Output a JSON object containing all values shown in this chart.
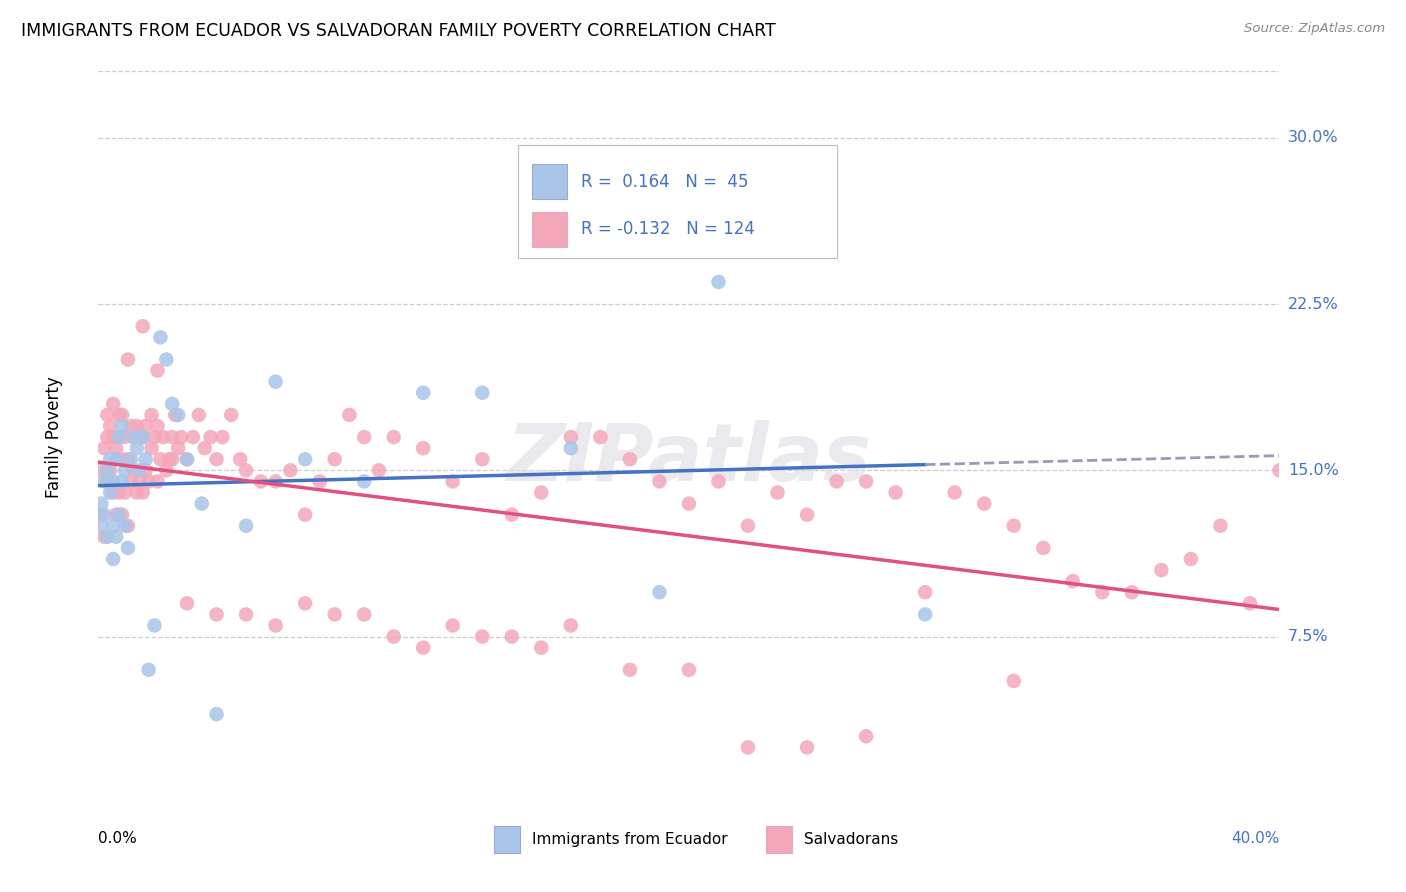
{
  "title": "IMMIGRANTS FROM ECUADOR VS SALVADORAN FAMILY POVERTY CORRELATION CHART",
  "source": "Source: ZipAtlas.com",
  "ylabel": "Family Poverty",
  "ytick_labels": [
    "7.5%",
    "15.0%",
    "22.5%",
    "30.0%"
  ],
  "ytick_vals": [
    0.075,
    0.15,
    0.225,
    0.3
  ],
  "xlim": [
    0.0,
    0.4
  ],
  "ylim": [
    0.0,
    0.33
  ],
  "color_ecuador": "#a8c5e8",
  "color_salvador": "#f4a7b9",
  "color_line_ecuador": "#4472c4",
  "color_line_salvador": "#e05080",
  "color_line_dashed": "#9999bb",
  "R_ecuador": 0.164,
  "N_ecuador": 45,
  "R_salvador": -0.132,
  "N_salvador": 124,
  "ecuador_x": [
    0.001,
    0.001,
    0.002,
    0.002,
    0.003,
    0.003,
    0.004,
    0.004,
    0.005,
    0.005,
    0.005,
    0.006,
    0.006,
    0.007,
    0.007,
    0.008,
    0.008,
    0.009,
    0.009,
    0.01,
    0.011,
    0.012,
    0.013,
    0.014,
    0.015,
    0.016,
    0.017,
    0.019,
    0.021,
    0.023,
    0.025,
    0.027,
    0.03,
    0.035,
    0.04,
    0.05,
    0.06,
    0.07,
    0.09,
    0.11,
    0.13,
    0.16,
    0.19,
    0.21,
    0.28
  ],
  "ecuador_y": [
    0.125,
    0.135,
    0.13,
    0.145,
    0.12,
    0.15,
    0.14,
    0.155,
    0.11,
    0.125,
    0.145,
    0.12,
    0.155,
    0.13,
    0.165,
    0.145,
    0.17,
    0.15,
    0.125,
    0.115,
    0.155,
    0.165,
    0.16,
    0.15,
    0.165,
    0.155,
    0.06,
    0.08,
    0.21,
    0.2,
    0.18,
    0.175,
    0.155,
    0.135,
    0.04,
    0.125,
    0.19,
    0.155,
    0.145,
    0.185,
    0.185,
    0.16,
    0.095,
    0.235,
    0.085
  ],
  "salvador_x": [
    0.001,
    0.001,
    0.002,
    0.002,
    0.003,
    0.003,
    0.003,
    0.004,
    0.004,
    0.005,
    0.005,
    0.005,
    0.006,
    0.006,
    0.007,
    0.007,
    0.007,
    0.008,
    0.008,
    0.008,
    0.009,
    0.009,
    0.01,
    0.01,
    0.011,
    0.011,
    0.012,
    0.012,
    0.013,
    0.013,
    0.014,
    0.014,
    0.015,
    0.015,
    0.016,
    0.016,
    0.017,
    0.018,
    0.018,
    0.019,
    0.02,
    0.02,
    0.021,
    0.022,
    0.023,
    0.024,
    0.025,
    0.026,
    0.027,
    0.028,
    0.03,
    0.032,
    0.034,
    0.036,
    0.038,
    0.04,
    0.042,
    0.045,
    0.048,
    0.05,
    0.055,
    0.06,
    0.065,
    0.07,
    0.075,
    0.08,
    0.085,
    0.09,
    0.095,
    0.1,
    0.11,
    0.12,
    0.13,
    0.14,
    0.15,
    0.16,
    0.17,
    0.18,
    0.19,
    0.2,
    0.21,
    0.22,
    0.23,
    0.24,
    0.25,
    0.26,
    0.27,
    0.28,
    0.29,
    0.3,
    0.31,
    0.32,
    0.33,
    0.34,
    0.35,
    0.36,
    0.37,
    0.38,
    0.39,
    0.4,
    0.01,
    0.015,
    0.02,
    0.025,
    0.03,
    0.04,
    0.05,
    0.06,
    0.07,
    0.08,
    0.09,
    0.1,
    0.11,
    0.12,
    0.13,
    0.14,
    0.15,
    0.16,
    0.18,
    0.2,
    0.22,
    0.24,
    0.26,
    0.31
  ],
  "salvador_y": [
    0.13,
    0.15,
    0.12,
    0.16,
    0.145,
    0.165,
    0.175,
    0.15,
    0.17,
    0.14,
    0.165,
    0.18,
    0.13,
    0.16,
    0.14,
    0.165,
    0.175,
    0.13,
    0.155,
    0.175,
    0.14,
    0.165,
    0.125,
    0.155,
    0.145,
    0.17,
    0.15,
    0.165,
    0.14,
    0.17,
    0.145,
    0.165,
    0.14,
    0.165,
    0.15,
    0.17,
    0.145,
    0.16,
    0.175,
    0.165,
    0.145,
    0.17,
    0.155,
    0.165,
    0.15,
    0.155,
    0.165,
    0.175,
    0.16,
    0.165,
    0.155,
    0.165,
    0.175,
    0.16,
    0.165,
    0.155,
    0.165,
    0.175,
    0.155,
    0.15,
    0.145,
    0.145,
    0.15,
    0.13,
    0.145,
    0.155,
    0.175,
    0.165,
    0.15,
    0.165,
    0.16,
    0.145,
    0.155,
    0.13,
    0.14,
    0.165,
    0.165,
    0.155,
    0.145,
    0.135,
    0.145,
    0.125,
    0.14,
    0.13,
    0.145,
    0.145,
    0.14,
    0.095,
    0.14,
    0.135,
    0.125,
    0.115,
    0.1,
    0.095,
    0.095,
    0.105,
    0.11,
    0.125,
    0.09,
    0.15,
    0.2,
    0.215,
    0.195,
    0.155,
    0.09,
    0.085,
    0.085,
    0.08,
    0.09,
    0.085,
    0.085,
    0.075,
    0.07,
    0.08,
    0.075,
    0.075,
    0.07,
    0.08,
    0.06,
    0.06,
    0.025,
    0.025,
    0.03,
    0.055
  ],
  "watermark_text": "ZIPatlas",
  "bg_color": "#ffffff",
  "grid_color": "#cccccc"
}
